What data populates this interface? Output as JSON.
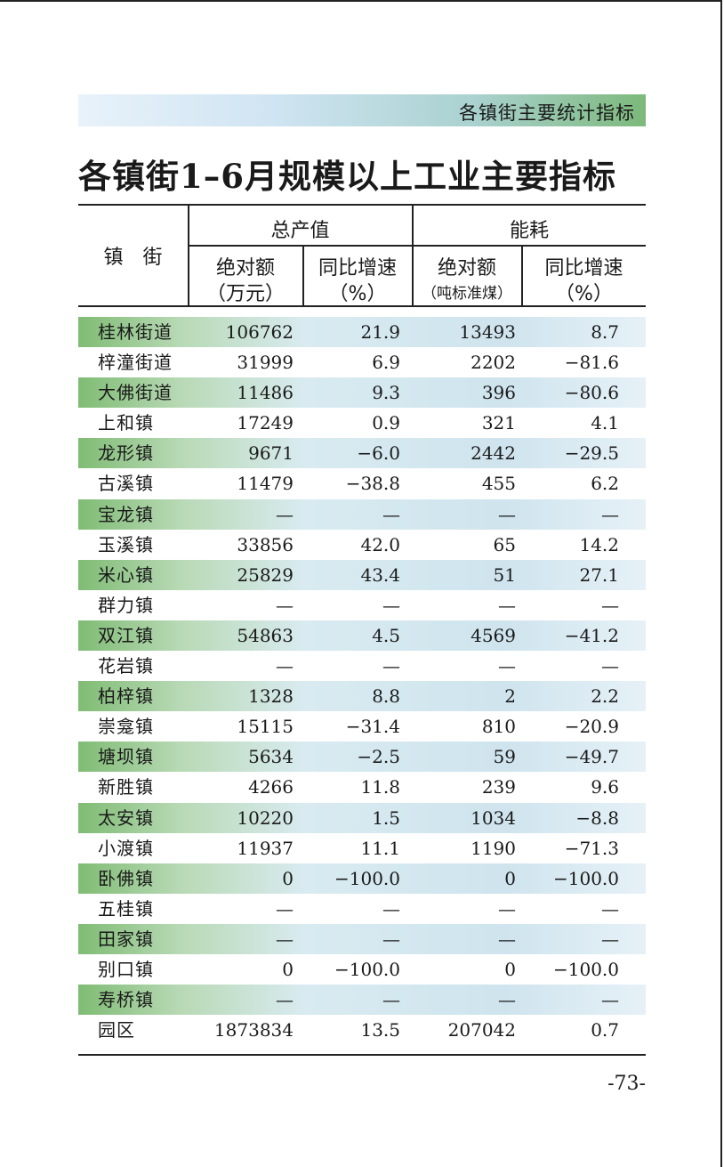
{
  "section_banner": "各镇街主要统计指标",
  "title": "各镇街1–6月规模以上工业主要指标",
  "headers": {
    "town": "镇　街",
    "output_group": "总产值",
    "energy_group": "能耗",
    "abs_value": "绝对额",
    "abs_unit_output": "（万元）",
    "growth": "同比增速",
    "growth_unit": "（%）",
    "abs_unit_energy": "（吨标准煤）"
  },
  "rows": [
    {
      "name": "桂林街道",
      "output": "106762",
      "output_growth": "21.9",
      "energy": "13493",
      "energy_growth": "8.7",
      "shaded": true
    },
    {
      "name": "梓潼街道",
      "output": "31999",
      "output_growth": "6.9",
      "energy": "2202",
      "energy_growth": "−81.6",
      "shaded": false
    },
    {
      "name": "大佛街道",
      "output": "11486",
      "output_growth": "9.3",
      "energy": "396",
      "energy_growth": "−80.6",
      "shaded": true
    },
    {
      "name": "上和镇",
      "output": "17249",
      "output_growth": "0.9",
      "energy": "321",
      "energy_growth": "4.1",
      "shaded": false
    },
    {
      "name": "龙形镇",
      "output": "9671",
      "output_growth": "−6.0",
      "energy": "2442",
      "energy_growth": "−29.5",
      "shaded": true
    },
    {
      "name": "古溪镇",
      "output": "11479",
      "output_growth": "−38.8",
      "energy": "455",
      "energy_growth": "6.2",
      "shaded": false
    },
    {
      "name": "宝龙镇",
      "output": "—",
      "output_growth": "—",
      "energy": "—",
      "energy_growth": "—",
      "shaded": true
    },
    {
      "name": "玉溪镇",
      "output": "33856",
      "output_growth": "42.0",
      "energy": "65",
      "energy_growth": "14.2",
      "shaded": false
    },
    {
      "name": "米心镇",
      "output": "25829",
      "output_growth": "43.4",
      "energy": "51",
      "energy_growth": "27.1",
      "shaded": true
    },
    {
      "name": "群力镇",
      "output": "—",
      "output_growth": "—",
      "energy": "—",
      "energy_growth": "—",
      "shaded": false
    },
    {
      "name": "双江镇",
      "output": "54863",
      "output_growth": "4.5",
      "energy": "4569",
      "energy_growth": "−41.2",
      "shaded": true
    },
    {
      "name": "花岩镇",
      "output": "—",
      "output_growth": "—",
      "energy": "—",
      "energy_growth": "—",
      "shaded": false
    },
    {
      "name": "柏梓镇",
      "output": "1328",
      "output_growth": "8.8",
      "energy": "2",
      "energy_growth": "2.2",
      "shaded": true
    },
    {
      "name": "崇龛镇",
      "output": "15115",
      "output_growth": "−31.4",
      "energy": "810",
      "energy_growth": "−20.9",
      "shaded": false
    },
    {
      "name": "塘坝镇",
      "output": "5634",
      "output_growth": "−2.5",
      "energy": "59",
      "energy_growth": "−49.7",
      "shaded": true
    },
    {
      "name": "新胜镇",
      "output": "4266",
      "output_growth": "11.8",
      "energy": "239",
      "energy_growth": "9.6",
      "shaded": false
    },
    {
      "name": "太安镇",
      "output": "10220",
      "output_growth": "1.5",
      "energy": "1034",
      "energy_growth": "−8.8",
      "shaded": true
    },
    {
      "name": "小渡镇",
      "output": "11937",
      "output_growth": "11.1",
      "energy": "1190",
      "energy_growth": "−71.3",
      "shaded": false
    },
    {
      "name": "卧佛镇",
      "output": "0",
      "output_growth": "−100.0",
      "energy": "0",
      "energy_growth": "−100.0",
      "shaded": true
    },
    {
      "name": "五桂镇",
      "output": "—",
      "output_growth": "—",
      "energy": "—",
      "energy_growth": "—",
      "shaded": false
    },
    {
      "name": "田家镇",
      "output": "—",
      "output_growth": "—",
      "energy": "—",
      "energy_growth": "—",
      "shaded": true
    },
    {
      "name": "别口镇",
      "output": "0",
      "output_growth": "−100.0",
      "energy": "0",
      "energy_growth": "−100.0",
      "shaded": false
    },
    {
      "name": "寿桥镇",
      "output": "—",
      "output_growth": "—",
      "energy": "—",
      "energy_growth": "—",
      "shaded": true
    },
    {
      "name": "园区",
      "output": "1873834",
      "output_growth": "13.5",
      "energy": "207042",
      "energy_growth": "0.7",
      "shaded": false
    }
  ],
  "page_number": "-73-"
}
